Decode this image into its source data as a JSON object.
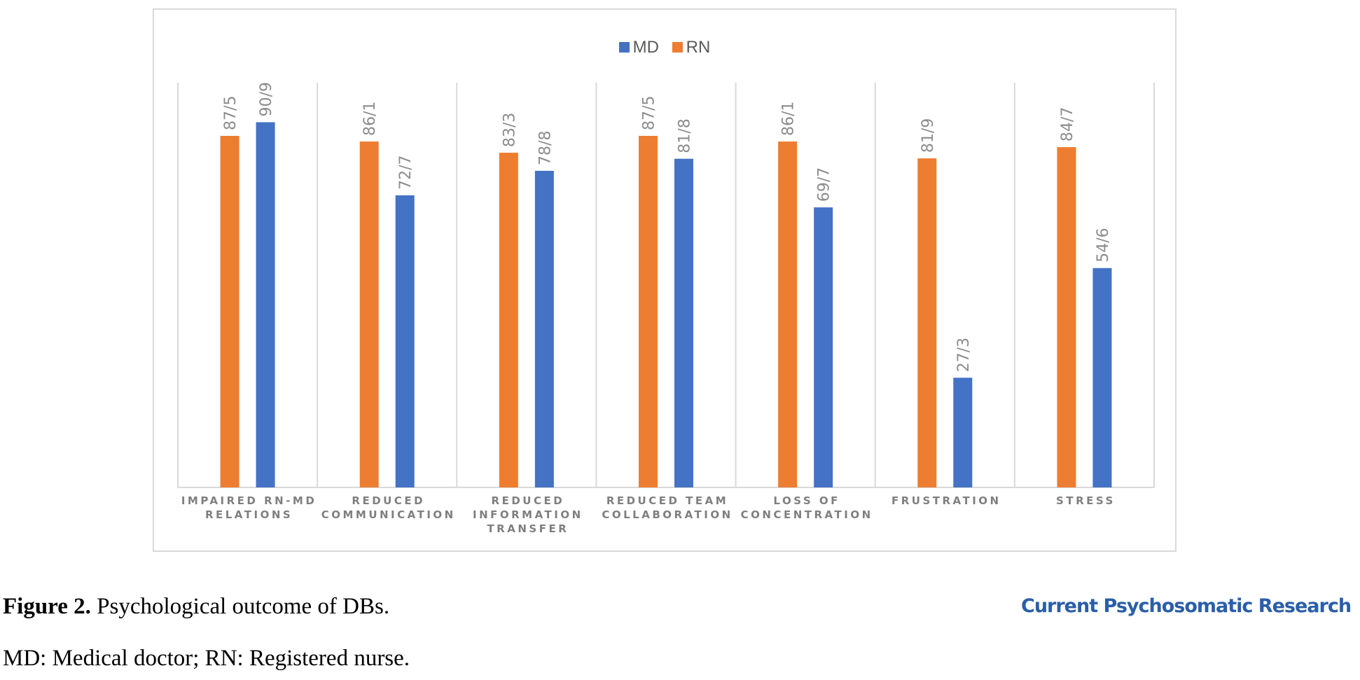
{
  "colors": {
    "MD": "#4472c4",
    "RN": "#ed7d31",
    "grid": "#d9d9d9",
    "text": "#595959"
  },
  "legend": {
    "md_label": "MD",
    "rn_label": "RN",
    "placement": "top-center"
  },
  "chart_data": {
    "type": "bar",
    "categories": [
      [
        "IMPAIRED RN-MD",
        "RELATIONS"
      ],
      [
        "REDUCED",
        "COMMUNICATION"
      ],
      [
        "REDUCED",
        "INFORMATION",
        "TRANSFER"
      ],
      [
        "REDUCED TEAM",
        "COLLABORATION"
      ],
      [
        "LOSS OF",
        "CONCENTRATION"
      ],
      [
        "FRUSTRATION"
      ],
      [
        "STRESS"
      ]
    ],
    "series": [
      {
        "name": "RN",
        "values": [
          87.5,
          86.1,
          83.3,
          87.5,
          86.1,
          81.9,
          84.7
        ],
        "labels": [
          "87/5",
          "86/1",
          "83/3",
          "87/5",
          "86/1",
          "81/9",
          "84/7"
        ]
      },
      {
        "name": "MD",
        "values": [
          90.9,
          72.7,
          78.8,
          81.8,
          69.7,
          27.3,
          54.6
        ],
        "labels": [
          "90/9",
          "72/7",
          "78/8",
          "81/8",
          "69/7",
          "27/3",
          "54/6"
        ]
      }
    ],
    "ylim": [
      0,
      100
    ],
    "grid": "vertical category separators",
    "title": "",
    "xlabel": "",
    "ylabel": ""
  },
  "caption": {
    "label": "Figure 2.",
    "text": " Psychological outcome of DBs."
  },
  "abbreviations": "MD: Medical doctor; RN: Registered nurse.",
  "journal": "Current Psychosomatic Research"
}
